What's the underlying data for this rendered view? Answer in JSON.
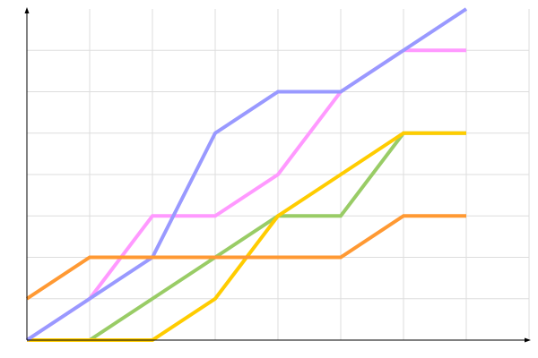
{
  "chart_data": {
    "type": "line",
    "title": "",
    "xlabel": "",
    "ylabel": "",
    "x": [
      0,
      1,
      2,
      3,
      4,
      5,
      6,
      7
    ],
    "xlim": [
      0,
      8
    ],
    "ylim": [
      0,
      8
    ],
    "grid": true,
    "legend": "none",
    "series": [
      {
        "color": "#99cc66",
        "values": [
          0,
          0,
          1,
          2,
          3,
          3,
          5,
          5
        ]
      },
      {
        "color": "#ffcc00",
        "values": [
          0,
          0,
          0,
          1,
          3,
          4,
          5,
          5
        ]
      },
      {
        "color": "#ff99ff",
        "values": [
          0,
          1,
          3,
          3,
          4,
          6,
          7,
          7
        ]
      },
      {
        "color": "#9999ff",
        "values": [
          0,
          1,
          2,
          5,
          6,
          6,
          7,
          8
        ]
      },
      {
        "color": "#ff9933",
        "values": [
          1,
          2,
          2,
          2,
          2,
          2,
          3,
          3
        ]
      }
    ]
  }
}
